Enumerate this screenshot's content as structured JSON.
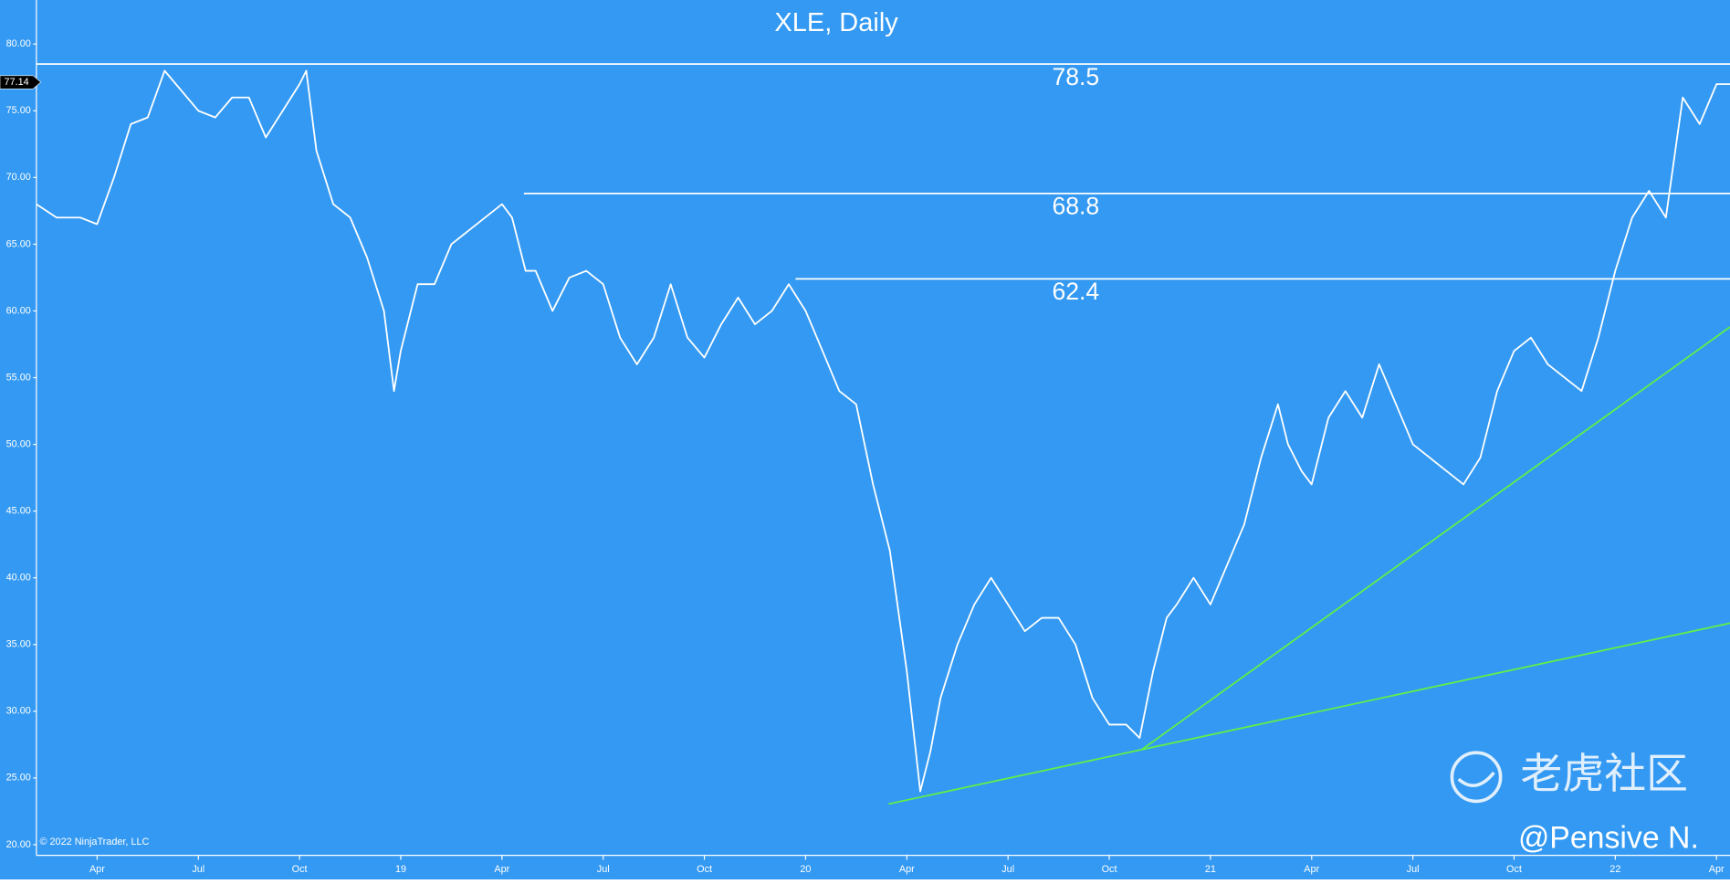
{
  "chart_data": {
    "type": "line",
    "title": "XLE, Daily",
    "copyright": "© 2022 NinjaTrader, LLC",
    "watermark": "老虎社区",
    "author": "@Pensive N.",
    "background": "#3399f2",
    "xlim": [
      1.2,
      51.4
    ],
    "ylim": [
      19.2,
      83.3
    ],
    "xticks": [
      {
        "value": 3,
        "label": "Apr"
      },
      {
        "value": 6,
        "label": "Jul"
      },
      {
        "value": 9,
        "label": "Oct"
      },
      {
        "value": 12,
        "label": "19"
      },
      {
        "value": 15,
        "label": "Apr"
      },
      {
        "value": 18,
        "label": "Jul"
      },
      {
        "value": 21,
        "label": "Oct"
      },
      {
        "value": 24,
        "label": "20"
      },
      {
        "value": 27,
        "label": "Apr"
      },
      {
        "value": 30,
        "label": "Jul"
      },
      {
        "value": 33,
        "label": "Oct"
      },
      {
        "value": 36,
        "label": "21"
      },
      {
        "value": 39,
        "label": "Apr"
      },
      {
        "value": 42,
        "label": "Jul"
      },
      {
        "value": 45,
        "label": "Oct"
      },
      {
        "value": 48,
        "label": "22"
      },
      {
        "value": 51,
        "label": "Apr"
      }
    ],
    "yticks": [
      {
        "value": 20,
        "label": "20.00"
      },
      {
        "value": 25,
        "label": "25.00"
      },
      {
        "value": 30,
        "label": "30.00"
      },
      {
        "value": 35,
        "label": "35.00"
      },
      {
        "value": 40,
        "label": "40.00"
      },
      {
        "value": 45,
        "label": "45.00"
      },
      {
        "value": 50,
        "label": "50.00"
      },
      {
        "value": 55,
        "label": "55.00"
      },
      {
        "value": 60,
        "label": "60.00"
      },
      {
        "value": 65,
        "label": "65.00"
      },
      {
        "value": 70,
        "label": "70.00"
      },
      {
        "value": 75,
        "label": "75.00"
      },
      {
        "value": 80,
        "label": "80.00"
      }
    ],
    "last_price": 77.14,
    "x": [
      1.2,
      1.8,
      2.5,
      3,
      3.5,
      4,
      4.5,
      5,
      5.5,
      6,
      6.5,
      7,
      7.5,
      8,
      8.5,
      9,
      9.2,
      9.5,
      10,
      10.5,
      11,
      11.5,
      11.8,
      12,
      12.5,
      13,
      13.5,
      14,
      14.5,
      15,
      15.3,
      15.7,
      16,
      16.5,
      17,
      17.5,
      18,
      18.5,
      19,
      19.5,
      20,
      20.5,
      21,
      21.5,
      22,
      22.5,
      23,
      23.5,
      24,
      24.5,
      25,
      25.5,
      26,
      26.5,
      27,
      27.4,
      27.7,
      28,
      28.5,
      29,
      29.5,
      30,
      30.5,
      31,
      31.5,
      32,
      32.5,
      33,
      33.5,
      33.9,
      34.3,
      34.7,
      35,
      35.5,
      36,
      36.5,
      37,
      37.5,
      38,
      38.3,
      38.7,
      39,
      39.5,
      40,
      40.5,
      41,
      41.5,
      42,
      42.5,
      43,
      43.5,
      44,
      44.5,
      45,
      45.5,
      46,
      46.5,
      47,
      47.5,
      48,
      48.5,
      49,
      49.5,
      50,
      50.5,
      51,
      51.4
    ],
    "series": [
      {
        "name": "XLE",
        "color": "#ffffff",
        "values": [
          68,
          67,
          67,
          66.5,
          70,
          74,
          74.5,
          78,
          76.5,
          75,
          74.5,
          76,
          76,
          73,
          75,
          77,
          78,
          72,
          68,
          67,
          64,
          60,
          54,
          57,
          62,
          62,
          65,
          66,
          67,
          68,
          67,
          63,
          63,
          60,
          62.5,
          63,
          62,
          58,
          56,
          58,
          62,
          58,
          56.5,
          59,
          61,
          59,
          60,
          62,
          60,
          57,
          54,
          53,
          47,
          42,
          33,
          24,
          27,
          31,
          35,
          38,
          40,
          38,
          36,
          37,
          37,
          35,
          31,
          29,
          29,
          28,
          33,
          37,
          38,
          40,
          38,
          41,
          44,
          49,
          53,
          50,
          48,
          47,
          52,
          54,
          52,
          56,
          53,
          50,
          49,
          48,
          47,
          49,
          54,
          57,
          58,
          56,
          55,
          54,
          58,
          63,
          67,
          69,
          67,
          76,
          74,
          77,
          77
        ]
      }
    ],
    "levels": [
      {
        "value": 78.5,
        "start": 1.2,
        "color": "#ffffff"
      },
      {
        "value": 68.8,
        "start": 15.65,
        "color": "#ffffff"
      },
      {
        "value": 62.4,
        "start": 23.7,
        "color": "#ffffff"
      }
    ],
    "trendlines": [
      {
        "x": [
          26.46,
          51.4
        ],
        "y": [
          23.05,
          36.6
        ],
        "color": "#5ef04a"
      },
      {
        "x": [
          33.95,
          51.4
        ],
        "y": [
          27.1,
          58.8
        ],
        "color": "#5ef04a"
      }
    ]
  }
}
